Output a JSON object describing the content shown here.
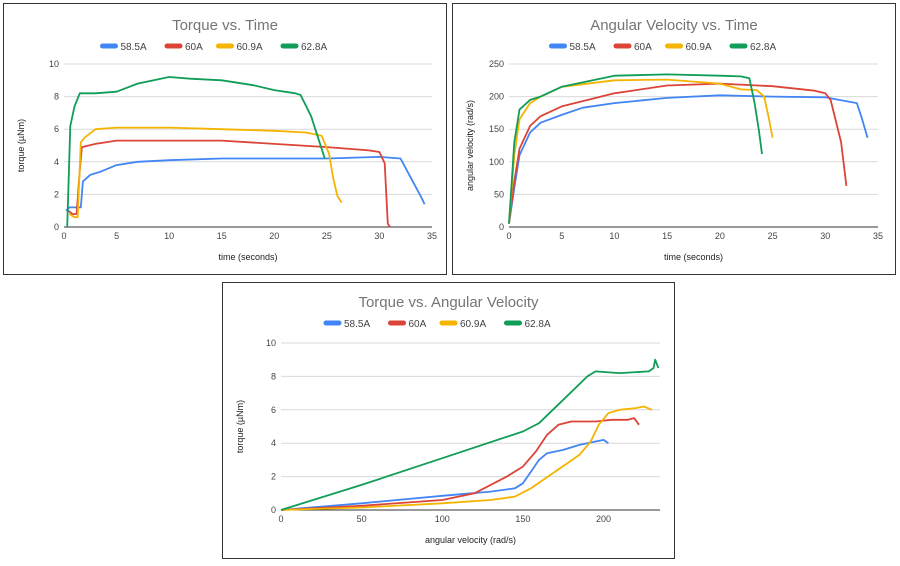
{
  "colors": {
    "58.5A": "#4285f4",
    "60A": "#db4437",
    "60.9A": "#f4b400",
    "62.8A": "#0f9d58"
  },
  "chart_data": [
    {
      "type": "line",
      "title": "Torque vs. Time",
      "xlabel": "time (seconds)",
      "ylabel": "torque (µNm)",
      "xlim": [
        0,
        35
      ],
      "ylim": [
        0,
        10
      ],
      "xticks": [
        0,
        5,
        10,
        15,
        20,
        25,
        30,
        35
      ],
      "yticks": [
        0,
        2,
        4,
        6,
        8,
        10
      ],
      "grid": true,
      "legend_position": "top",
      "series": [
        {
          "name": "58.5A",
          "points": [
            [
              0.2,
              1.0
            ],
            [
              0.5,
              1.2
            ],
            [
              1.0,
              1.2
            ],
            [
              1.6,
              1.2
            ],
            [
              1.8,
              2.8
            ],
            [
              2.5,
              3.2
            ],
            [
              3.5,
              3.4
            ],
            [
              5,
              3.8
            ],
            [
              7,
              4.0
            ],
            [
              10,
              4.1
            ],
            [
              15,
              4.2
            ],
            [
              20,
              4.2
            ],
            [
              25,
              4.2
            ],
            [
              30,
              4.3
            ],
            [
              32,
              4.2
            ],
            [
              33,
              3.0
            ],
            [
              34,
              1.8
            ],
            [
              34.3,
              1.4
            ]
          ]
        },
        {
          "name": "60A",
          "points": [
            [
              0.4,
              1.0
            ],
            [
              0.8,
              0.8
            ],
            [
              1.2,
              0.8
            ],
            [
              1.5,
              3.5
            ],
            [
              1.7,
              4.9
            ],
            [
              3,
              5.1
            ],
            [
              5,
              5.3
            ],
            [
              10,
              5.3
            ],
            [
              15,
              5.3
            ],
            [
              20,
              5.1
            ],
            [
              25,
              4.9
            ],
            [
              29,
              4.7
            ],
            [
              30,
              4.6
            ],
            [
              30.5,
              3.9
            ],
            [
              30.8,
              0.2
            ],
            [
              31,
              0.0
            ]
          ]
        },
        {
          "name": "60.9A",
          "points": [
            [
              0.5,
              0.8
            ],
            [
              1.0,
              0.6
            ],
            [
              1.3,
              0.6
            ],
            [
              1.6,
              5.2
            ],
            [
              2,
              5.5
            ],
            [
              3,
              6.0
            ],
            [
              5,
              6.1
            ],
            [
              10,
              6.1
            ],
            [
              15,
              6.0
            ],
            [
              20,
              5.9
            ],
            [
              23,
              5.8
            ],
            [
              24.5,
              5.6
            ],
            [
              25.2,
              4.5
            ],
            [
              25.6,
              3.0
            ],
            [
              26,
              1.9
            ],
            [
              26.4,
              1.5
            ]
          ]
        },
        {
          "name": "62.8A",
          "points": [
            [
              0.3,
              0.0
            ],
            [
              0.6,
              6.2
            ],
            [
              1,
              7.4
            ],
            [
              1.5,
              8.2
            ],
            [
              3,
              8.2
            ],
            [
              5,
              8.3
            ],
            [
              7,
              8.8
            ],
            [
              10,
              9.2
            ],
            [
              12,
              9.1
            ],
            [
              15,
              9.0
            ],
            [
              18,
              8.7
            ],
            [
              20,
              8.4
            ],
            [
              22,
              8.2
            ],
            [
              22.5,
              8.1
            ],
            [
              23.5,
              6.8
            ],
            [
              24.3,
              5.2
            ],
            [
              24.8,
              4.2
            ]
          ]
        }
      ]
    },
    {
      "type": "line",
      "title": "Angular Velocity vs. Time",
      "xlabel": "time (seconds)",
      "ylabel": "angular velocity (rad/s)",
      "xlim": [
        0,
        35
      ],
      "ylim": [
        0,
        250
      ],
      "xticks": [
        0,
        5,
        10,
        15,
        20,
        25,
        30,
        35
      ],
      "yticks": [
        0,
        50,
        100,
        150,
        200,
        250
      ],
      "grid": true,
      "legend_position": "top",
      "series": [
        {
          "name": "58.5A",
          "points": [
            [
              0,
              5
            ],
            [
              0.5,
              60
            ],
            [
              1,
              110
            ],
            [
              2,
              145
            ],
            [
              3,
              160
            ],
            [
              5,
              172
            ],
            [
              7,
              183
            ],
            [
              10,
              190
            ],
            [
              15,
              198
            ],
            [
              20,
              202
            ],
            [
              25,
              200
            ],
            [
              30,
              199
            ],
            [
              32,
              193
            ],
            [
              33,
              190
            ],
            [
              33.5,
              165
            ],
            [
              34,
              137
            ]
          ]
        },
        {
          "name": "60A",
          "points": [
            [
              0,
              5
            ],
            [
              0.5,
              70
            ],
            [
              1,
              120
            ],
            [
              2,
              155
            ],
            [
              3,
              170
            ],
            [
              5,
              185
            ],
            [
              10,
              205
            ],
            [
              15,
              217
            ],
            [
              20,
              220
            ],
            [
              25,
              216
            ],
            [
              29,
              209
            ],
            [
              30,
              205
            ],
            [
              30.5,
              195
            ],
            [
              31.5,
              130
            ],
            [
              32,
              63
            ]
          ]
        },
        {
          "name": "60.9A",
          "points": [
            [
              0,
              5
            ],
            [
              0.5,
              110
            ],
            [
              1,
              165
            ],
            [
              2,
              190
            ],
            [
              3,
              200
            ],
            [
              5,
              215
            ],
            [
              10,
              225
            ],
            [
              15,
              226
            ],
            [
              20,
              220
            ],
            [
              22,
              211
            ],
            [
              23.5,
              210
            ],
            [
              24.2,
              200
            ],
            [
              24.6,
              170
            ],
            [
              25,
              137
            ]
          ]
        },
        {
          "name": "62.8A",
          "points": [
            [
              0,
              5
            ],
            [
              0.5,
              130
            ],
            [
              1,
              180
            ],
            [
              2,
              195
            ],
            [
              3,
              200
            ],
            [
              5,
              215
            ],
            [
              10,
              232
            ],
            [
              15,
              234
            ],
            [
              20,
              232
            ],
            [
              22,
              231
            ],
            [
              22.8,
              228
            ],
            [
              23.3,
              190
            ],
            [
              23.7,
              148
            ],
            [
              24,
              112
            ]
          ]
        }
      ]
    },
    {
      "type": "line",
      "title": "Torque vs. Angular Velocity",
      "xlabel": "angular velocity (rad/s)",
      "ylabel": "torque (µNm)",
      "xlim": [
        0,
        235
      ],
      "ylim": [
        0,
        10
      ],
      "xticks": [
        0,
        50,
        100,
        150,
        200
      ],
      "yticks": [
        0,
        2,
        4,
        6,
        8,
        10
      ],
      "grid": true,
      "legend_position": "top",
      "series": [
        {
          "name": "58.5A",
          "points": [
            [
              0,
              0
            ],
            [
              50,
              0.4
            ],
            [
              100,
              0.85
            ],
            [
              130,
              1.1
            ],
            [
              145,
              1.3
            ],
            [
              150,
              1.6
            ],
            [
              155,
              2.3
            ],
            [
              160,
              3.0
            ],
            [
              165,
              3.4
            ],
            [
              175,
              3.6
            ],
            [
              185,
              3.9
            ],
            [
              195,
              4.1
            ],
            [
              200,
              4.2
            ],
            [
              203,
              4.0
            ]
          ]
        },
        {
          "name": "60A",
          "points": [
            [
              0,
              0
            ],
            [
              50,
              0.25
            ],
            [
              100,
              0.6
            ],
            [
              120,
              1.0
            ],
            [
              140,
              2.0
            ],
            [
              150,
              2.6
            ],
            [
              158,
              3.5
            ],
            [
              165,
              4.5
            ],
            [
              172,
              5.1
            ],
            [
              180,
              5.3
            ],
            [
              195,
              5.3
            ],
            [
              205,
              5.4
            ],
            [
              215,
              5.4
            ],
            [
              219,
              5.5
            ],
            [
              222,
              5.1
            ]
          ]
        },
        {
          "name": "60.9A",
          "points": [
            [
              0,
              0
            ],
            [
              50,
              0.15
            ],
            [
              100,
              0.4
            ],
            [
              130,
              0.6
            ],
            [
              145,
              0.8
            ],
            [
              155,
              1.3
            ],
            [
              170,
              2.3
            ],
            [
              185,
              3.3
            ],
            [
              192,
              4.1
            ],
            [
              197,
              5.1
            ],
            [
              203,
              5.8
            ],
            [
              210,
              6.0
            ],
            [
              220,
              6.1
            ],
            [
              225,
              6.2
            ],
            [
              230,
              6.0
            ]
          ]
        },
        {
          "name": "62.8A",
          "points": [
            [
              0,
              0
            ],
            [
              50,
              1.5
            ],
            [
              100,
              3.1
            ],
            [
              150,
              4.7
            ],
            [
              160,
              5.2
            ],
            [
              175,
              6.6
            ],
            [
              190,
              8.0
            ],
            [
              195,
              8.3
            ],
            [
              210,
              8.2
            ],
            [
              228,
              8.3
            ],
            [
              231,
              8.5
            ],
            [
              232,
              9.0
            ],
            [
              234,
              8.5
            ]
          ]
        }
      ]
    }
  ]
}
